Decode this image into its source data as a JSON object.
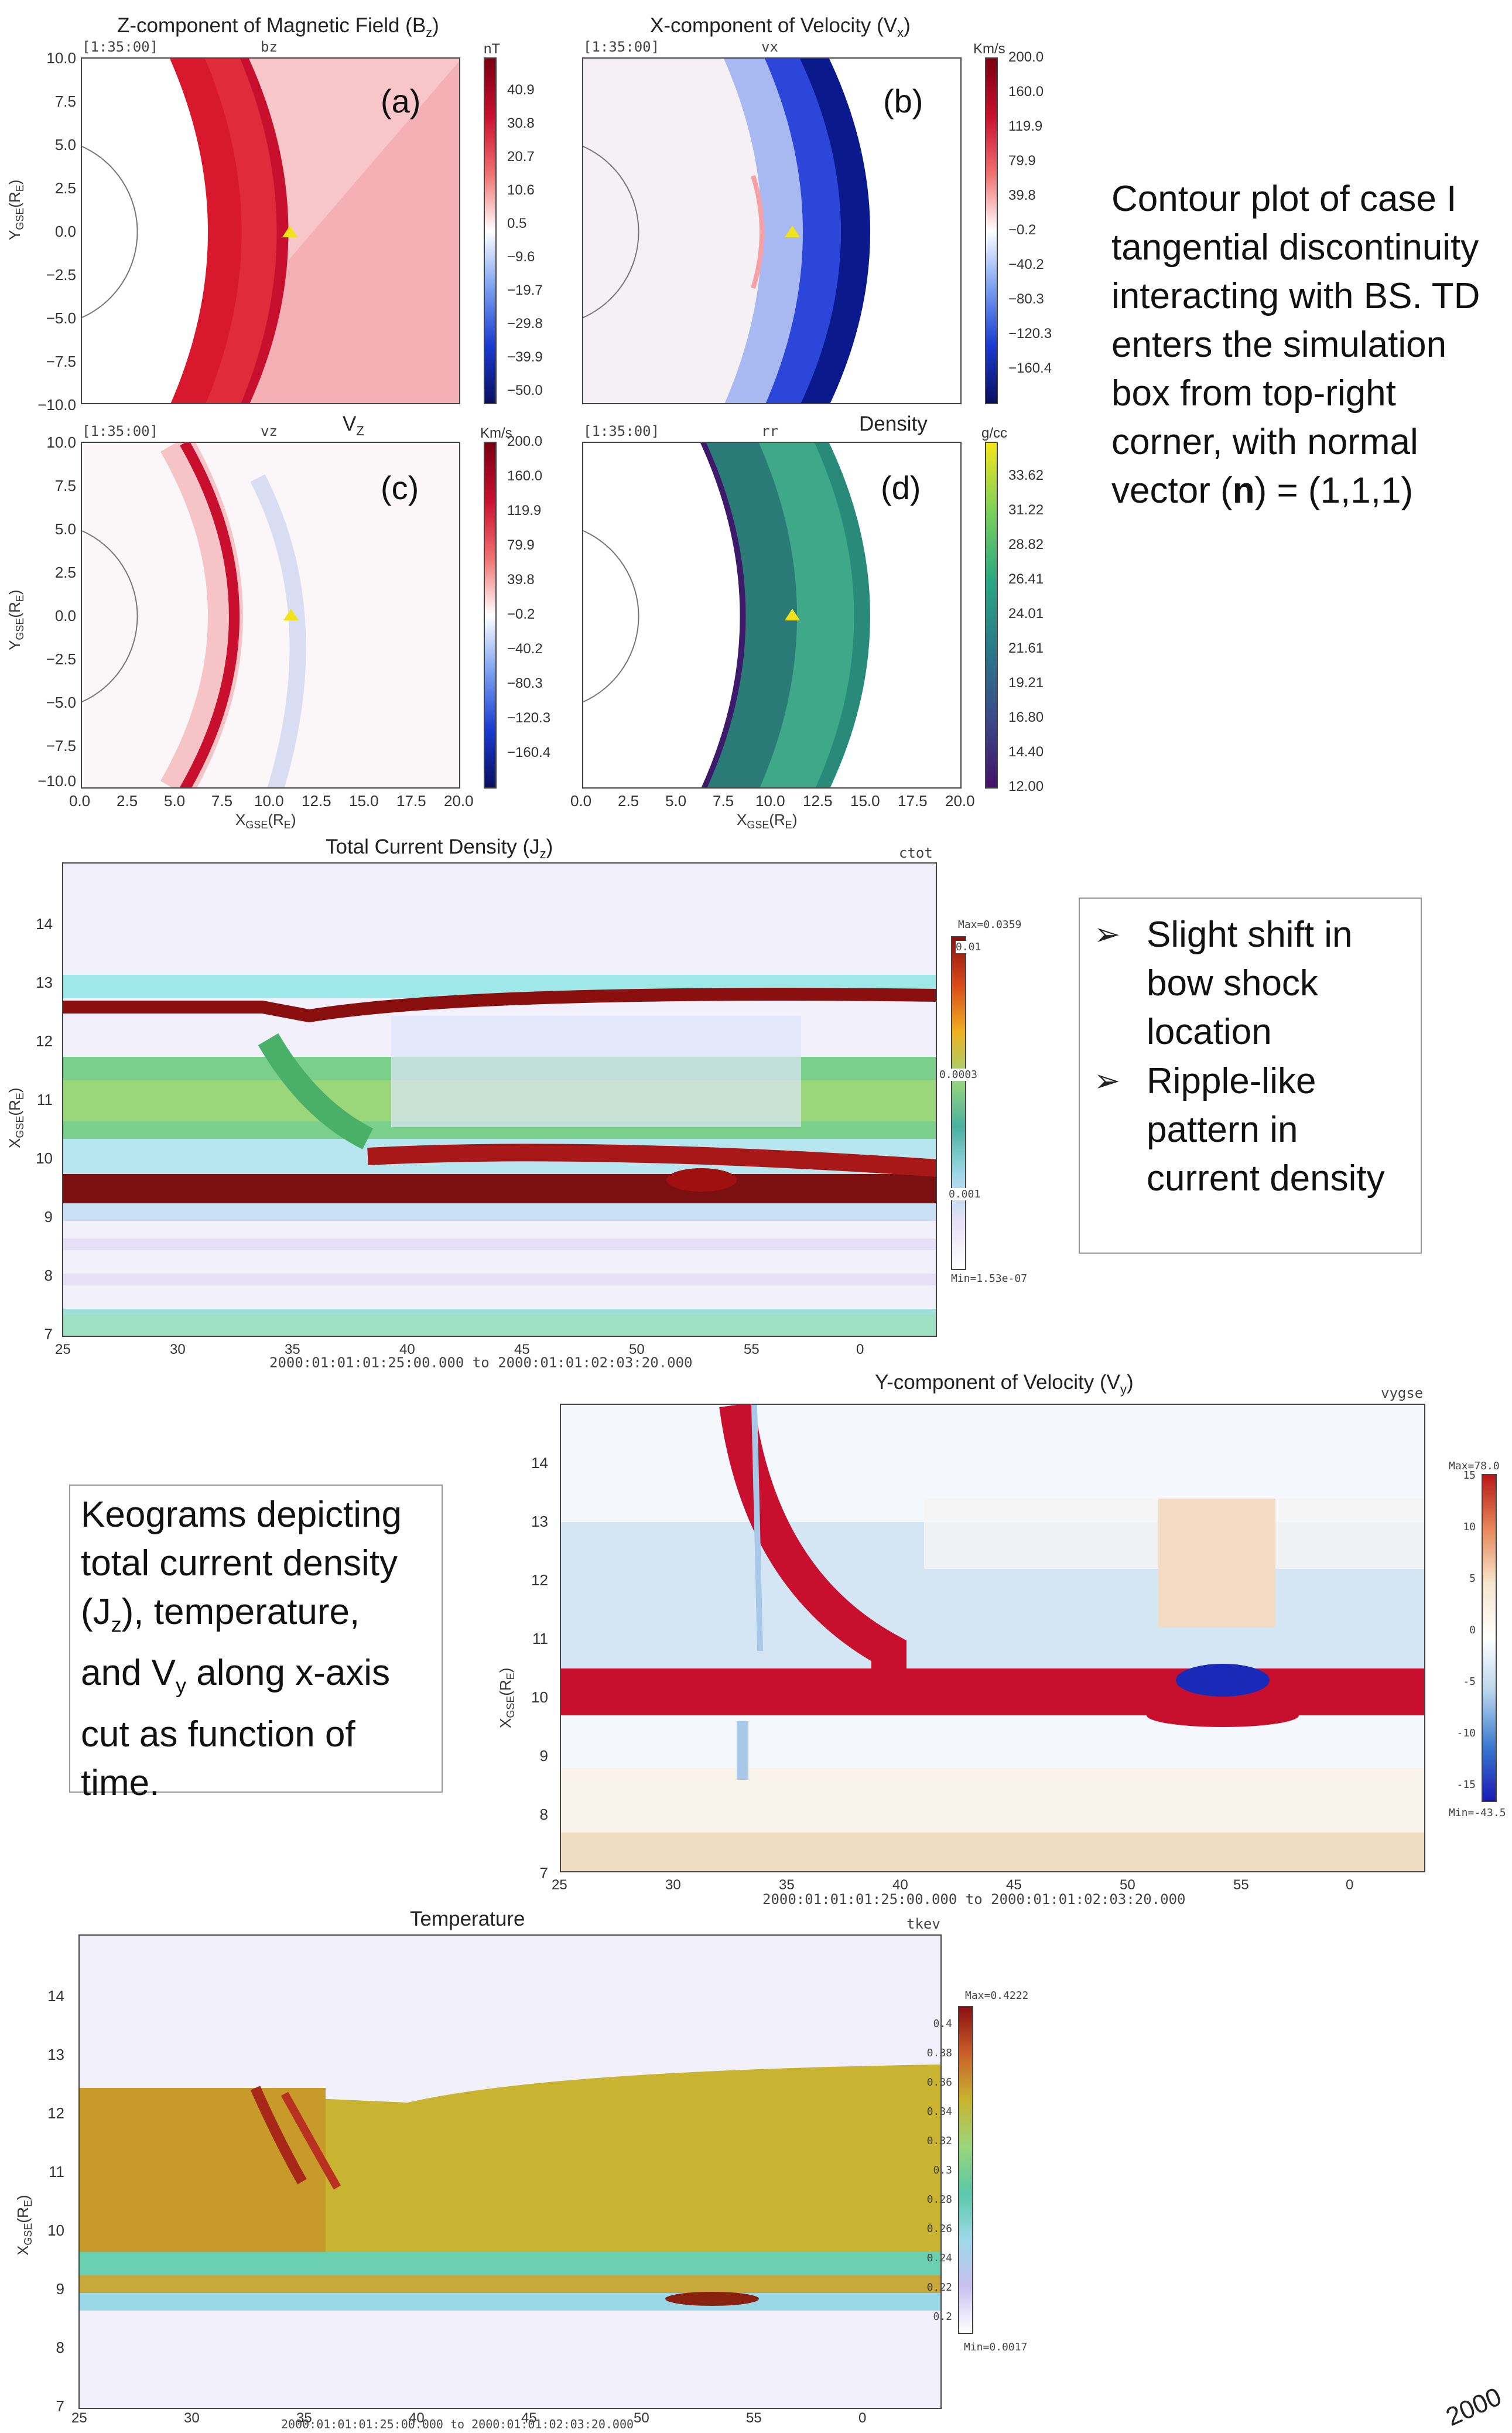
{
  "panels": {
    "a": {
      "heading_pre": "Z-component of Magnetic Field (B",
      "heading_sub": "z",
      "heading_post": ")",
      "time": "[1:35:00]",
      "var": "bz",
      "letter": "(a)",
      "unit": "nT",
      "cbar_ticks": [
        "40.9",
        "30.8",
        "20.7",
        "10.6",
        "0.5",
        "−9.6",
        "−19.7",
        "−29.8",
        "−39.9",
        "−50.0"
      ]
    },
    "b": {
      "heading_pre": "X-component of Velocity (V",
      "heading_sub": "x",
      "heading_post": ")",
      "time": "[1:35:00]",
      "var": "vx",
      "letter": "(b)",
      "unit": "Km/s",
      "cbar_ticks": [
        "200.0",
        "160.0",
        "119.9",
        "79.9",
        "39.8",
        "−0.2",
        "−40.2",
        "−80.3",
        "−120.3",
        "−160.4"
      ]
    },
    "c": {
      "heading_pre": "V",
      "heading_sub": "Z",
      "heading_post": "",
      "time": "[1:35:00]",
      "var": "vz",
      "letter": "(c)",
      "unit": "Km/s",
      "cbar_ticks": [
        "200.0",
        "160.0",
        "119.9",
        "79.9",
        "39.8",
        "−0.2",
        "−40.2",
        "−80.3",
        "−120.3",
        "−160.4"
      ]
    },
    "d": {
      "heading_pre": "Density",
      "heading_sub": "",
      "heading_post": "",
      "time": "[1:35:00]",
      "var": "rr",
      "letter": "(d)",
      "unit": "g/cc",
      "cbar_ticks": [
        "33.62",
        "31.22",
        "28.82",
        "26.41",
        "24.01",
        "21.61",
        "19.21",
        "16.80",
        "14.40",
        "12.00"
      ]
    },
    "y_ticks": [
      "10.0",
      "7.5",
      "5.0",
      "2.5",
      "0.0",
      "−2.5",
      "−5.0",
      "−7.5",
      "−10.0"
    ],
    "x_ticks": [
      "0.0",
      "2.5",
      "5.0",
      "7.5",
      "10.0",
      "12.5",
      "15.0",
      "17.5",
      "20.0"
    ],
    "ylabel_main": "Y",
    "ylabel_sub": "GSE",
    "ylabel_post": "(R",
    "ylabel_sub2": "E",
    "ylabel_end": ")",
    "xlabel_main": "X",
    "xlabel_sub": "GSE",
    "xlabel_post": "(R",
    "xlabel_sub2": "E",
    "xlabel_end": ")"
  },
  "side_text_top": "Contour plot of case I tangential discontinuity interacting with BS. TD enters the simulation box from top-right corner, with normal vector (n) = (1,1,1)",
  "side_text_top_parts": {
    "pre": "Contour plot of case I tangential discontinuity interacting with BS. TD enters the simulation box from top-right corner, with normal vector (",
    "bold": "n",
    "post": ") = (1,1,1)"
  },
  "bullets": [
    "Slight shift in bow shock location",
    "Ripple-like pattern in current density"
  ],
  "bullet_symbol": "➢",
  "keogram_caption_parts": {
    "line1": "Keograms depicting",
    "line2": "total current density",
    "line3_pre": "(J",
    "line3_sub": "z",
    "line3_post": "), temperature,",
    "line4_pre": "and V",
    "line4_sub": "y",
    "line4_post": " along x-axis",
    "line5": "cut as function of",
    "line6": "time."
  },
  "keograms": {
    "jz": {
      "title_pre": "Total Current Density (J",
      "title_sub": "z",
      "title_post": ")",
      "var": "ctot",
      "cbar_max": "Max=0.0359",
      "cbar_min": "Min=1.53e-07",
      "cbar_ticks": [
        "0.01",
        "0.0003",
        "0.001"
      ],
      "time_range": "2000:01:01:01:25:00.000   to   2000:01:01:02:03:20.000",
      "x_ticks": [
        "25",
        "30",
        "35",
        "40",
        "45",
        "50",
        "55",
        "0"
      ],
      "y_ticks": [
        "14",
        "13",
        "12",
        "11",
        "10",
        "9",
        "8",
        "7"
      ]
    },
    "vy": {
      "title_pre": "Y-component of Velocity (V",
      "title_sub": "y",
      "title_post": ")",
      "var": "vygse",
      "cbar_max": "Max=78.0",
      "cbar_min": "Min=-43.5",
      "cbar_ticks": [
        "15",
        "10",
        "5",
        "0",
        "-5",
        "-10",
        "-15"
      ],
      "time_range": "2000:01:01:01:25:00.000   to   2000:01:01:02:03:20.000",
      "x_ticks": [
        "25",
        "30",
        "35",
        "40",
        "45",
        "50",
        "55",
        "0"
      ],
      "y_ticks": [
        "14",
        "13",
        "12",
        "11",
        "10",
        "9",
        "8",
        "7"
      ]
    },
    "temp": {
      "title": "Temperature",
      "var": "tkev",
      "cbar_max": "Max=0.4222",
      "cbar_min": "Min=0.0017",
      "cbar_ticks": [
        "0.4",
        "0.38",
        "0.36",
        "0.34",
        "0.32",
        "0.3",
        "0.28",
        "0.26",
        "0.24",
        "0.22",
        "0.2"
      ],
      "time_range": "2000:01:01:01:25:00.000   to   2000:01:01:02:03:20.000",
      "x_ticks": [
        "25",
        "30",
        "35",
        "40",
        "45",
        "50",
        "55",
        "0"
      ],
      "y_ticks": [
        "14",
        "13",
        "12",
        "11",
        "10",
        "9",
        "8",
        "7"
      ]
    },
    "ylabel_main": "X",
    "ylabel_sub": "GSE",
    "ylabel_post": "(R",
    "ylabel_sub2": "E",
    "ylabel_end": ")"
  },
  "corner_text": "2000",
  "colors": {
    "red": "#c8102e",
    "blue": "#0a1a8c",
    "teal": "#2a8a7a",
    "yellow_marker": "#f2e21b"
  }
}
